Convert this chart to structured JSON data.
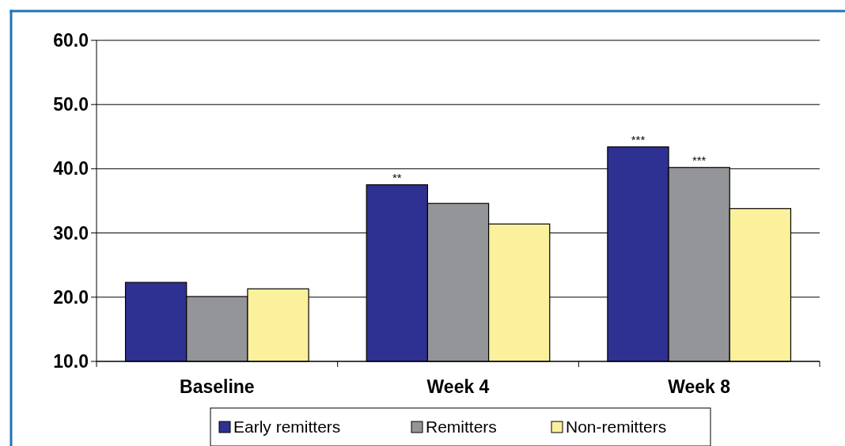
{
  "chart_data": {
    "type": "bar",
    "categories": [
      "Baseline",
      "Week 4",
      "Week 8"
    ],
    "series": [
      {
        "name": "Early remitters",
        "color": "#2e3192",
        "values": [
          22.3,
          37.5,
          43.4
        ],
        "value_labels": [
          null,
          "**",
          "***"
        ]
      },
      {
        "name": "Remitters",
        "color": "#939598",
        "values": [
          20.1,
          34.6,
          40.2
        ],
        "value_labels": [
          null,
          null,
          "***"
        ]
      },
      {
        "name": "Non-remitters",
        "color": "#fbf19c",
        "values": [
          21.3,
          31.4,
          33.8
        ],
        "value_labels": [
          null,
          null,
          null
        ]
      }
    ],
    "ylim": [
      10,
      60
    ],
    "yticks": [
      {
        "value": 10,
        "label": "10.0"
      },
      {
        "value": 20,
        "label": "20.0"
      },
      {
        "value": 30,
        "label": "30.0"
      },
      {
        "value": 40,
        "label": "40.0"
      },
      {
        "value": 50,
        "label": "50.0"
      },
      {
        "value": 60,
        "label": "60.0"
      }
    ],
    "grid": "y",
    "legend": "bottom"
  }
}
